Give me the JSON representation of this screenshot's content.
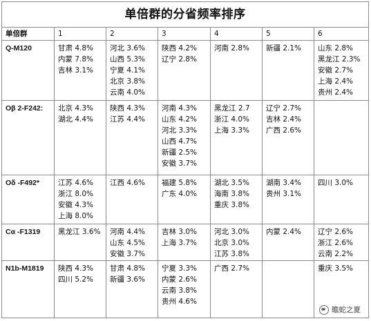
{
  "title": "单倍群的分省频率排序",
  "columns": [
    "单倍群",
    "1",
    "2",
    "3",
    "4",
    "5",
    "6"
  ],
  "rows": [
    {
      "haplogroup": "Q-M120",
      "ranks": [
        [
          "甘肃 4.8%",
          "内蒙 7.8%",
          "吉林 3.1%"
        ],
        [
          "河北 3.6%",
          "山西 5.3%",
          "宁夏 4.1%",
          "北京 3.8%",
          "云南 4.0%"
        ],
        [
          "陕西 4.2%",
          "辽宁 2.8%"
        ],
        [
          "河南 2.8%"
        ],
        [
          "新疆 2.1%"
        ],
        [
          "山东 2.8%",
          "黑龙江 2.3%",
          "安徽 2.7%",
          "上海 2.4%",
          "贵州 2.4%"
        ]
      ]
    },
    {
      "haplogroup": "Oβ 2-F242:",
      "ranks": [
        [
          "北京 4.3%",
          "湖北 4.4%"
        ],
        [
          "陕西 4.3%",
          "江苏 4.4%"
        ],
        [
          "河南 4.3%",
          "山东 4.2%",
          "河北 3.3%",
          "山西 4.7%",
          "新疆 2.5%",
          "安徽 3.7%"
        ],
        [
          "黑龙江 2.7",
          "浙江 4.0%",
          "上海 3.3%"
        ],
        [
          "辽宁 2.7%",
          "吉林 2.4%",
          "广西 2.6%"
        ],
        []
      ]
    },
    {
      "haplogroup": "Oδ -F492*",
      "ranks": [
        [
          "江苏 4.6%",
          "浙江 8.0%",
          "安徽 4.3%",
          "上海 8.0%"
        ],
        [
          "江西 4.6%"
        ],
        [
          "福建 5.8%",
          "广东 4.0%"
        ],
        [
          "湖北 3.5%",
          "海南 3.8%",
          "重庆 3.8%"
        ],
        [
          "湖南 3.4%",
          "贵州 3.1%"
        ],
        [
          "四川 3.0%"
        ]
      ]
    },
    {
      "haplogroup": "Cα -F1319",
      "ranks": [
        [
          "黑龙江 3.6%"
        ],
        [
          "河南 4.4%",
          "山东 4.5%",
          "安徽 3.7%"
        ],
        [
          "吉林 3.0%",
          "上海 3.7%"
        ],
        [
          "河北 3.0%",
          "北京 3.0%",
          "江苏 3.8%"
        ],
        [
          "内蒙 2.4%"
        ],
        [
          "辽宁 2.6%",
          "浙江 2.6%",
          "云南 2.2%"
        ]
      ]
    },
    {
      "haplogroup": "N1b-M1819",
      "ranks": [
        [
          "陕西 4.3%",
          "四川 5.2%"
        ],
        [
          "甘肃 4.8%",
          "新疆 3.6%"
        ],
        [
          "宁夏 3.3%",
          "内蒙 2.6%",
          "云南 3.8%",
          "贵州 4.6%"
        ],
        [
          "广西 2.7%"
        ],
        [],
        [
          "重庆 3.5%"
        ]
      ]
    }
  ],
  "watermark": {
    "icon": "wechat-icon",
    "text": "瞻蛇之夏"
  }
}
